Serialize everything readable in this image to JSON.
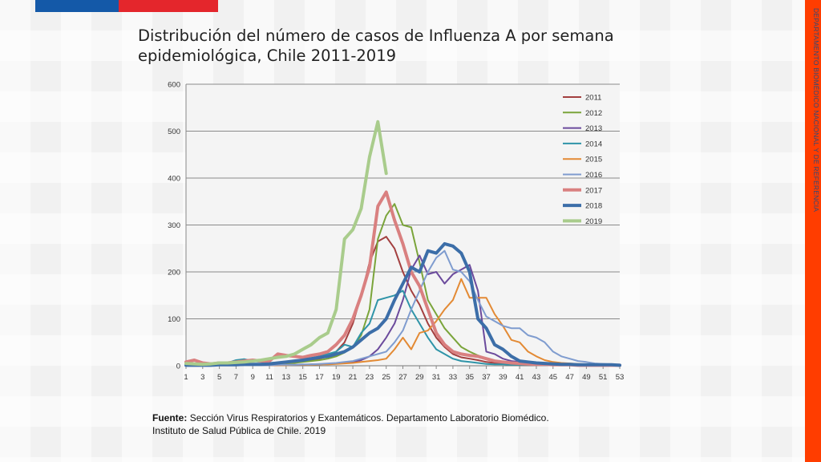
{
  "header": {
    "title": "Distribución del número de casos de Influenza A por semana epidemiológica, Chile 2011-2019",
    "side_label": "DEPARTAMENTO BIOMÉDICO NACIONAL Y DE REFERENCIA",
    "flag_colors": [
      "#1459a8",
      "#e4262c"
    ],
    "accent_strip_color": "#ff3d00"
  },
  "footer": {
    "source_label": "Fuente:",
    "source_text": "Sección Virus Respiratorios y Exantemáticos. Departamento Laboratorio Biomédico.",
    "source_text_2": "Instituto de Salud Pública de Chile. 2019"
  },
  "chart_data": {
    "type": "line",
    "title": "",
    "xlabel": "",
    "ylabel": "",
    "xlim": [
      1,
      53
    ],
    "ylim": [
      0,
      600
    ],
    "y_ticks": [
      0,
      100,
      200,
      300,
      400,
      500,
      600
    ],
    "x_ticks": [
      1,
      3,
      5,
      7,
      9,
      11,
      13,
      15,
      17,
      19,
      21,
      23,
      25,
      27,
      29,
      31,
      33,
      35,
      37,
      39,
      41,
      43,
      45,
      47,
      49,
      51,
      53
    ],
    "grid": true,
    "legend": "top-right",
    "series": [
      {
        "name": "2011",
        "color": "#a33f3f",
        "weeks": [
          1,
          53
        ],
        "values": [
          5,
          3,
          2,
          2,
          3,
          4,
          5,
          4,
          3,
          3,
          4,
          5,
          6,
          8,
          10,
          12,
          15,
          20,
          30,
          50,
          90,
          150,
          220,
          265,
          275,
          250,
          200,
          160,
          130,
          90,
          60,
          40,
          25,
          18,
          15,
          12,
          8,
          6,
          5,
          4,
          3,
          3,
          2,
          2,
          2,
          2,
          1,
          1,
          1,
          1,
          1,
          1,
          1
        ]
      },
      {
        "name": "2012",
        "color": "#7aa43a",
        "weeks": [
          1,
          53
        ],
        "values": [
          2,
          2,
          2,
          3,
          3,
          2,
          2,
          3,
          3,
          4,
          4,
          5,
          5,
          6,
          8,
          10,
          12,
          15,
          20,
          28,
          40,
          65,
          120,
          270,
          320,
          345,
          300,
          295,
          220,
          140,
          110,
          80,
          60,
          40,
          30,
          22,
          15,
          10,
          8,
          6,
          5,
          4,
          3,
          3,
          2,
          2,
          2,
          2,
          1,
          1,
          1,
          1,
          1
        ]
      },
      {
        "name": "2013",
        "color": "#6b4a9c",
        "weeks": [
          1,
          53
        ],
        "values": [
          1,
          1,
          1,
          1,
          1,
          1,
          1,
          1,
          1,
          1,
          1,
          1,
          2,
          2,
          2,
          3,
          3,
          4,
          5,
          6,
          8,
          12,
          20,
          35,
          60,
          90,
          140,
          205,
          235,
          195,
          200,
          175,
          195,
          205,
          215,
          160,
          30,
          25,
          15,
          10,
          8,
          6,
          5,
          4,
          3,
          3,
          2,
          2,
          2,
          1,
          1,
          1,
          1
        ]
      },
      {
        "name": "2014",
        "color": "#2f94a8",
        "weeks": [
          1,
          53
        ],
        "values": [
          3,
          2,
          3,
          4,
          5,
          6,
          12,
          14,
          10,
          8,
          6,
          7,
          8,
          10,
          12,
          15,
          20,
          25,
          30,
          45,
          40,
          70,
          90,
          140,
          145,
          150,
          160,
          120,
          90,
          60,
          35,
          25,
          15,
          10,
          8,
          6,
          4,
          3,
          3,
          2,
          2,
          2,
          2,
          1,
          1,
          1,
          1,
          1,
          1,
          1,
          1,
          1,
          1
        ]
      },
      {
        "name": "2015",
        "color": "#e38a34",
        "weeks": [
          1,
          53
        ],
        "values": [
          1,
          1,
          1,
          1,
          1,
          1,
          1,
          1,
          1,
          1,
          1,
          1,
          1,
          2,
          2,
          2,
          3,
          3,
          4,
          5,
          6,
          8,
          10,
          12,
          15,
          35,
          60,
          35,
          70,
          75,
          95,
          120,
          140,
          185,
          145,
          145,
          145,
          110,
          85,
          55,
          50,
          30,
          20,
          12,
          8,
          6,
          5,
          4,
          3,
          2,
          2,
          1,
          1
        ]
      },
      {
        "name": "2016",
        "color": "#7f9ccf",
        "weeks": [
          1,
          53
        ],
        "values": [
          1,
          1,
          1,
          1,
          1,
          1,
          1,
          1,
          1,
          1,
          1,
          2,
          2,
          2,
          3,
          3,
          4,
          5,
          6,
          8,
          10,
          15,
          20,
          25,
          30,
          50,
          75,
          120,
          160,
          200,
          230,
          245,
          205,
          200,
          180,
          140,
          105,
          95,
          85,
          80,
          80,
          65,
          60,
          50,
          30,
          20,
          15,
          10,
          8,
          5,
          4,
          3,
          2
        ]
      },
      {
        "name": "2017",
        "color": "#d98080",
        "weeks": [
          1,
          53
        ],
        "values": [
          8,
          12,
          6,
          4,
          6,
          6,
          8,
          10,
          12,
          10,
          10,
          25,
          22,
          20,
          18,
          22,
          25,
          30,
          45,
          65,
          100,
          150,
          210,
          340,
          370,
          310,
          260,
          200,
          170,
          120,
          70,
          45,
          30,
          25,
          22,
          20,
          15,
          10,
          8,
          6,
          5,
          4,
          3,
          3,
          2,
          2,
          2,
          1,
          1,
          1,
          1,
          1,
          1
        ]
      },
      {
        "name": "2018",
        "color": "#3c6ea8",
        "weeks": [
          1,
          53
        ],
        "values": [
          1,
          1,
          1,
          1,
          2,
          2,
          2,
          3,
          3,
          3,
          4,
          6,
          8,
          10,
          12,
          15,
          18,
          20,
          25,
          30,
          40,
          55,
          70,
          80,
          100,
          140,
          175,
          210,
          200,
          245,
          240,
          260,
          255,
          240,
          200,
          100,
          80,
          45,
          35,
          20,
          10,
          8,
          6,
          5,
          4,
          3,
          3,
          2,
          2,
          2,
          2,
          2,
          1
        ]
      },
      {
        "name": "2019",
        "color": "#a9cc8c",
        "weeks": [
          1,
          25
        ],
        "values": [
          5,
          4,
          3,
          4,
          6,
          6,
          7,
          8,
          10,
          12,
          15,
          18,
          20,
          25,
          35,
          45,
          60,
          70,
          120,
          270,
          290,
          335,
          445,
          520,
          410
        ]
      }
    ]
  }
}
